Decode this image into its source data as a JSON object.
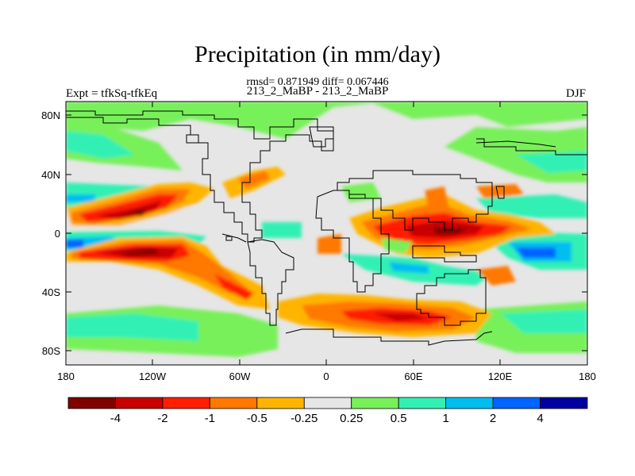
{
  "title": "Precipitation (in mm/day)",
  "subtitle": "rmsd= 0.871949 diff= 0.067446",
  "center_label": "213_2_MaBP - 213_2_MaBP",
  "left_label": "Expt = tfkSq-tfkEq",
  "right_label": "DJF",
  "y_axis": {
    "ticks": [
      "80N",
      "40N",
      "0",
      "40S",
      "80S"
    ]
  },
  "x_axis": {
    "ticks": [
      "180",
      "120W",
      "60W",
      "0",
      "60E",
      "120E",
      "180"
    ]
  },
  "colorbar": {
    "colors": [
      "#800000",
      "#c80000",
      "#ff1e00",
      "#ff7800",
      "#ffb400",
      "#e6e6e6",
      "#78f05a",
      "#32f0b4",
      "#00bef0",
      "#0064ff",
      "#0000a0"
    ],
    "labels": [
      "-4",
      "-2",
      "-1",
      "-0.5",
      "-0.25",
      "0.25",
      "0.5",
      "1",
      "2",
      "4"
    ]
  }
}
